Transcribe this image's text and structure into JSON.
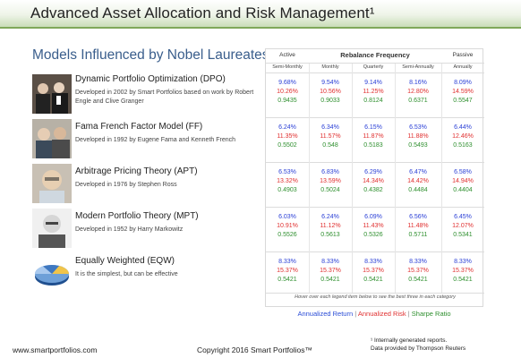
{
  "header": {
    "title": "Advanced Asset Allocation and Risk Management¹"
  },
  "section": {
    "title": "Models Influenced by Nobel Laureates"
  },
  "table": {
    "active_label": "Active",
    "rebalance_label": "Rebalance Frequency",
    "passive_label": "Passive",
    "columns": [
      "Semi-Monthly",
      "Monthly",
      "Quarterly",
      "Semi-Annually",
      "Annually"
    ],
    "hover_note": "Hover over each legend item below to see the best three in each category"
  },
  "models": [
    {
      "title": "Dynamic Portfolio Optimization (DPO)",
      "desc": "Developed in 2002 by Smart Portfolios based on work by Robert Engle and Clive Granger",
      "icon": "portrait-photo",
      "values": [
        [
          "9.68%",
          "10.26%",
          "0.9435"
        ],
        [
          "9.54%",
          "10.56%",
          "0.9033"
        ],
        [
          "9.14%",
          "11.25%",
          "0.8124"
        ],
        [
          "8.16%",
          "12.80%",
          "0.6371"
        ],
        [
          "8.09%",
          "14.59%",
          "0.5547"
        ]
      ]
    },
    {
      "title": "Fama French Factor Model (FF)",
      "desc": "Developed in 1992 by Eugene Fama and Kenneth French",
      "icon": "portrait-photo",
      "values": [
        [
          "6.24%",
          "11.35%",
          "0.5502"
        ],
        [
          "6.34%",
          "11.57%",
          "0.548"
        ],
        [
          "6.15%",
          "11.87%",
          "0.5183"
        ],
        [
          "6.53%",
          "11.88%",
          "0.5493"
        ],
        [
          "6.44%",
          "12.46%",
          "0.5163"
        ]
      ]
    },
    {
      "title": "Arbitrage Pricing Theory (APT)",
      "desc": "Developed in 1976 by Stephen Ross",
      "icon": "portrait-photo",
      "values": [
        [
          "6.53%",
          "13.32%",
          "0.4903"
        ],
        [
          "6.83%",
          "13.59%",
          "0.5024"
        ],
        [
          "6.29%",
          "14.34%",
          "0.4382"
        ],
        [
          "6.47%",
          "14.42%",
          "0.4484"
        ],
        [
          "6.58%",
          "14.94%",
          "0.4404"
        ]
      ]
    },
    {
      "title": "Modern Portfolio Theory (MPT)",
      "desc": "Developed in 1952 by Harry Markowitz",
      "icon": "portrait-photo",
      "values": [
        [
          "6.03%",
          "10.91%",
          "0.5526"
        ],
        [
          "6.24%",
          "11.12%",
          "0.5613"
        ],
        [
          "6.09%",
          "11.43%",
          "0.5326"
        ],
        [
          "6.56%",
          "11.48%",
          "0.5711"
        ],
        [
          "6.45%",
          "12.07%",
          "0.5341"
        ]
      ]
    },
    {
      "title": "Equally Weighted (EQW)",
      "desc": "It is the simplest, but can be effective",
      "icon": "pie-chart-icon",
      "values": [
        [
          "8.33%",
          "15.37%",
          "0.5421"
        ],
        [
          "8.33%",
          "15.37%",
          "0.5421"
        ],
        [
          "8.33%",
          "15.37%",
          "0.5421"
        ],
        [
          "8.33%",
          "15.37%",
          "0.5421"
        ],
        [
          "8.33%",
          "15.37%",
          "0.5421"
        ]
      ]
    }
  ],
  "legend": {
    "return_label": "Annualized Return",
    "risk_label": "Annualized Risk",
    "sharpe_label": "Sharpe Ratio",
    "separator": " | "
  },
  "footer": {
    "website": "www.smartportfolios.com",
    "copyright": "Copyright 2016 Smart Portfolios™",
    "note_line1": "¹ Internally generated reports.",
    "note_line2": "Data provided by Thompson Reuters"
  },
  "colors": {
    "return": "#2a3fd6",
    "risk": "#e03030",
    "sharpe": "#2e8f2e",
    "accent": "#3a5e8c"
  }
}
